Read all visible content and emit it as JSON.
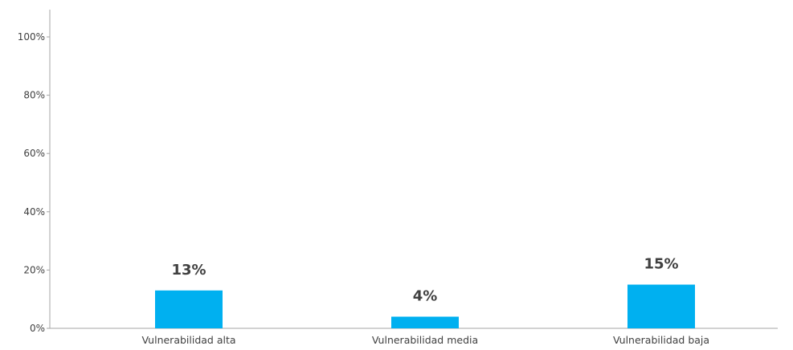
{
  "chart_data": {
    "type": "bar",
    "categories": [
      "Vulnerabilidad alta",
      "Vulnerabilidad media",
      "Vulnerabilidad baja"
    ],
    "values": [
      13,
      4,
      15
    ],
    "data_labels": [
      "13%",
      "4%",
      "15%"
    ],
    "ylim": [
      0,
      100
    ],
    "y_ticks": [
      0,
      20,
      40,
      60,
      80,
      100
    ],
    "y_tick_labels": [
      "0%",
      "20%",
      "40%",
      "60%",
      "80%",
      "100%"
    ],
    "grid": false,
    "legend": "none",
    "bar_color": "#00b0f0",
    "title": "",
    "xlabel": "",
    "ylabel": ""
  }
}
